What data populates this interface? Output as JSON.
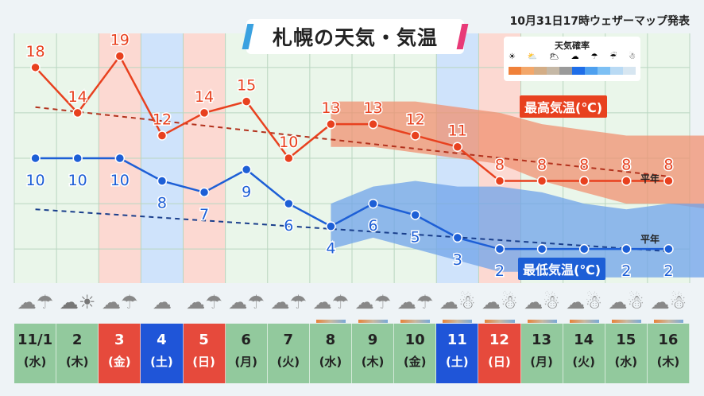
{
  "header": {
    "title": "札幌の天気・気温",
    "issued": "10月31日17時ウェザーマップ発表"
  },
  "legend": {
    "title": "天気確率",
    "icons": [
      "sun-icon",
      "sun-cloud-icon",
      "cloud-sun-icon",
      "cloud-icon",
      "umbrella-icon",
      "umbrella-snow-icon",
      "snowman-icon"
    ],
    "colors": [
      "#f0813a",
      "#f3a76a",
      "#d3ad86",
      "#c5b8a6",
      "#9a9a9a",
      "#1f6ee8",
      "#4ea0ef",
      "#7dc0f4",
      "#b9daf4",
      "#d7e6f1"
    ]
  },
  "colors": {
    "high": "#e8411f",
    "low": "#1d5fd6",
    "high_band": "#f09070",
    "low_band": "#6fa3ea",
    "grid": "#b9d6c0",
    "plot_bg": "#eaf6ea",
    "weekend_sat": "#cfe3fb",
    "weekend_sun": "#fcd9d2"
  },
  "series_labels": {
    "high": "最高気温(℃)",
    "low": "最低気温(℃)",
    "normal": "平年"
  },
  "days": [
    {
      "date": "11/1",
      "dow": "(水)",
      "type": "weekday",
      "icon": "cloud-umbrella-icon"
    },
    {
      "date": "2",
      "dow": "(木)",
      "type": "weekday",
      "icon": "cloud-sun-icon"
    },
    {
      "date": "3",
      "dow": "(金)",
      "type": "sun",
      "icon": "cloud-umbrella-icon"
    },
    {
      "date": "4",
      "dow": "(土)",
      "type": "sat",
      "icon": "cloud-icon"
    },
    {
      "date": "5",
      "dow": "(日)",
      "type": "sun",
      "icon": "cloud-umbrella-icon"
    },
    {
      "date": "6",
      "dow": "(月)",
      "type": "weekday",
      "icon": "cloud-umbrella-icon"
    },
    {
      "date": "7",
      "dow": "(火)",
      "type": "weekday",
      "icon": "cloud-umbrella-icon"
    },
    {
      "date": "8",
      "dow": "(水)",
      "type": "weekday",
      "icon": "cloud-umbrella-icon"
    },
    {
      "date": "9",
      "dow": "(木)",
      "type": "weekday",
      "icon": "cloud-umbrella-icon"
    },
    {
      "date": "10",
      "dow": "(金)",
      "type": "weekday",
      "icon": "cloud-umbrella-icon"
    },
    {
      "date": "11",
      "dow": "(土)",
      "type": "sat",
      "icon": "cloud-snowman-icon"
    },
    {
      "date": "12",
      "dow": "(日)",
      "type": "sun",
      "icon": "cloud-snowman-icon"
    },
    {
      "date": "13",
      "dow": "(月)",
      "type": "weekday",
      "icon": "cloud-snowman-icon"
    },
    {
      "date": "14",
      "dow": "(火)",
      "type": "weekday",
      "icon": "cloud-snowman-icon"
    },
    {
      "date": "15",
      "dow": "(水)",
      "type": "weekday",
      "icon": "cloud-snowman-icon"
    },
    {
      "date": "16",
      "dow": "(木)",
      "type": "weekday",
      "icon": "cloud-snowman-icon"
    }
  ],
  "chart_data": {
    "type": "line",
    "title": "札幌の天気・気温",
    "categories": [
      "11/1",
      "2",
      "3",
      "4",
      "5",
      "6",
      "7",
      "8",
      "9",
      "10",
      "11",
      "12",
      "13",
      "14",
      "15",
      "16"
    ],
    "ylim": [
      -1,
      21
    ],
    "grid": true,
    "series": [
      {
        "name": "最高気温(℃)",
        "values": [
          18,
          14,
          19,
          12,
          14,
          15,
          10,
          13,
          13,
          12,
          11,
          8,
          8,
          8,
          8,
          8
        ]
      },
      {
        "name": "最低気温(℃)",
        "values": [
          10,
          10,
          10,
          8,
          7,
          9,
          6,
          4,
          6,
          5,
          3,
          2,
          2,
          2,
          2,
          2
        ]
      }
    ],
    "normal": {
      "label": "平年",
      "high": {
        "start": 14.5,
        "end": 8.4
      },
      "low": {
        "start": 5.5,
        "end": 1.8
      }
    },
    "range_bands": {
      "high": {
        "from_index": 7,
        "upper": [
          15,
          15,
          15,
          14.5,
          14,
          13,
          12.5,
          12,
          12,
          12
        ],
        "lower": [
          11,
          11,
          10.5,
          10,
          9.5,
          8,
          7,
          6,
          6,
          5.5
        ]
      },
      "low": {
        "from_index": 7,
        "upper": [
          6,
          7.5,
          8,
          7.5,
          7.5,
          7,
          6,
          5.5,
          6,
          6
        ],
        "lower": [
          2,
          3,
          2,
          1,
          0,
          0,
          -0.5,
          -0.5,
          -0.5,
          -0.5
        ]
      }
    }
  }
}
